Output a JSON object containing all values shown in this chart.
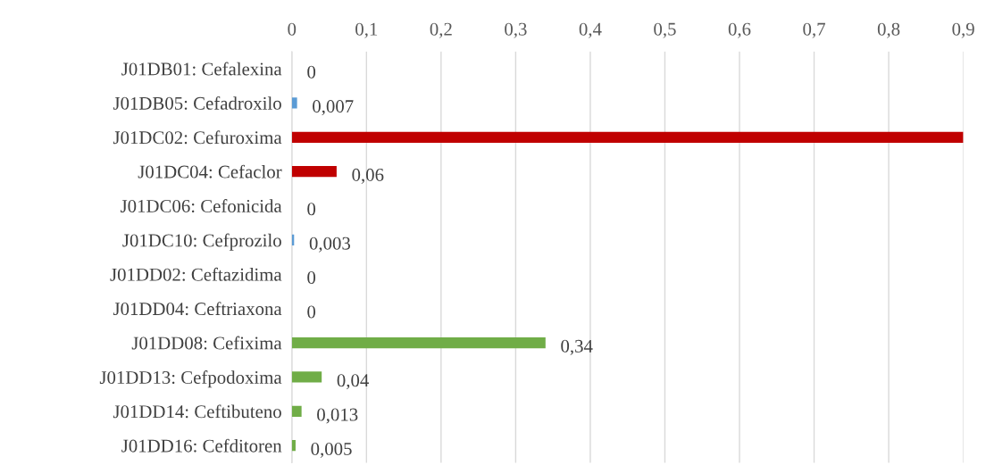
{
  "chart_data": {
    "type": "bar",
    "orientation": "horizontal",
    "categories": [
      "J01DB01: Cefalexina",
      "J01DB05: Cefadroxilo",
      "J01DC02: Cefuroxima",
      "J01DC04: Cefaclor",
      "J01DC06: Cefonicida",
      "J01DC10: Cefprozilo",
      "J01DD02: Ceftazidima",
      "J01DD04: Ceftriaxona",
      "J01DD08: Cefixima",
      "J01DD13: Cefpodoxima",
      "J01DD14: Ceftibuteno",
      "J01DD16: Cefditoren"
    ],
    "values": [
      0,
      0.007,
      0.9,
      0.06,
      0,
      0.003,
      0,
      0,
      0.34,
      0.04,
      0.013,
      0.005
    ],
    "value_labels": [
      "0",
      "0,007",
      null,
      "0,06",
      "0",
      "0,003",
      "0",
      "0",
      "0,34",
      "0,04",
      "0,013",
      "0,005"
    ],
    "colors": [
      "#5b9bd5",
      "#5b9bd5",
      "#c00000",
      "#c00000",
      "#c00000",
      "#5b9bd5",
      "#70ad47",
      "#70ad47",
      "#70ad47",
      "#70ad47",
      "#70ad47",
      "#70ad47"
    ],
    "xlim": [
      0,
      0.9
    ],
    "xticks": [
      0,
      {
        "value": 0.1,
        "label": "0,1"
      },
      {
        "value": 0.2,
        "label": "0,2"
      },
      {
        "value": 0.3,
        "label": "0,3"
      },
      {
        "value": 0.4,
        "label": "0,4"
      },
      {
        "value": 0.5,
        "label": "0,5"
      },
      {
        "value": 0.6,
        "label": "0,6"
      },
      {
        "value": 0.7,
        "label": "0,7"
      },
      {
        "value": 0.8,
        "label": "0,8"
      },
      {
        "value": 0.9,
        "label": "0,9"
      }
    ],
    "grid": "x",
    "legend": false
  }
}
